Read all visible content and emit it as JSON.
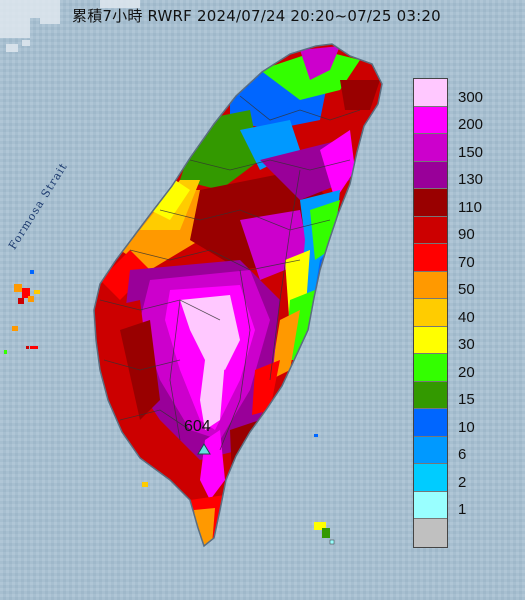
{
  "title": "累積7小時 RWRF 2024/07/24 20:20~07/25 03:20",
  "strait_label": "Formosa Strait",
  "max_value": "604",
  "legend": {
    "items": [
      {
        "label": "300",
        "color": "#ffc8ff"
      },
      {
        "label": "200",
        "color": "#ff00ff"
      },
      {
        "label": "150",
        "color": "#cc00cc"
      },
      {
        "label": "130",
        "color": "#990099"
      },
      {
        "label": "110",
        "color": "#990000"
      },
      {
        "label": "90",
        "color": "#cc0000"
      },
      {
        "label": "70",
        "color": "#ff0000"
      },
      {
        "label": "50",
        "color": "#ff9900"
      },
      {
        "label": "40",
        "color": "#ffcc00"
      },
      {
        "label": "30",
        "color": "#ffff00"
      },
      {
        "label": "20",
        "color": "#33ff00"
      },
      {
        "label": "15",
        "color": "#339900"
      },
      {
        "label": "10",
        "color": "#0066ff"
      },
      {
        "label": "6",
        "color": "#0099ff"
      },
      {
        "label": "2",
        "color": "#00ccff"
      },
      {
        "label": "1",
        "color": "#99ffff"
      },
      {
        "label": "",
        "color": "#c0c0c0"
      }
    ]
  },
  "map_colors": {
    "sea": "#a7bfd0",
    "land_outline": "#5a6d80",
    "county_border": "#333333"
  }
}
